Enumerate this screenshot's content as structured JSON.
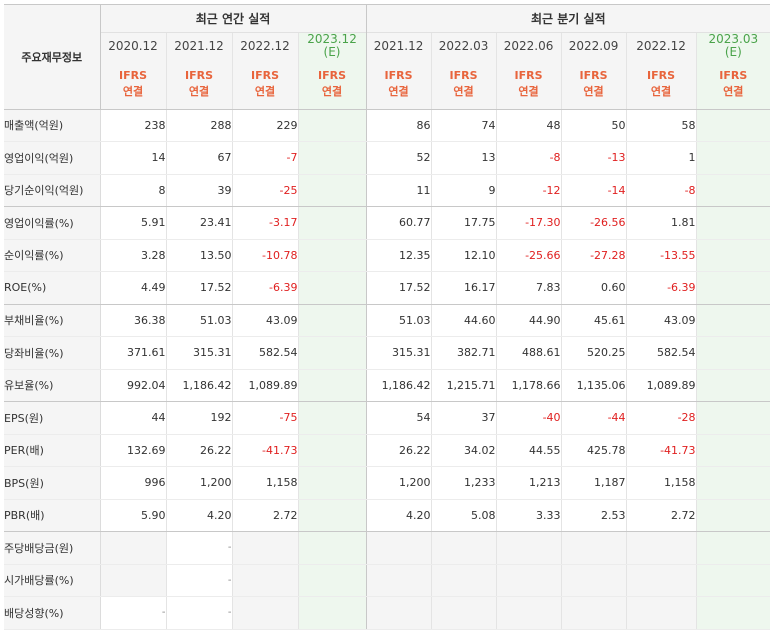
{
  "header": {
    "row_label": "주요재무정보",
    "annual_title": "최근 연간 실적",
    "quarter_title": "최근 분기 실적",
    "ifrs_line1": "IFRS",
    "ifrs_line2": "연결"
  },
  "annual_periods": [
    "2020.12",
    "2021.12",
    "2022.12",
    "2023.12"
  ],
  "annual_est_suffix": "(E)",
  "quarter_periods": [
    "2021.12",
    "2022.03",
    "2022.06",
    "2022.09",
    "2022.12",
    "2023.03"
  ],
  "quarter_est_suffix": "(E)",
  "rows": [
    {
      "label": "매출액(억원)",
      "annual": [
        "238",
        "288",
        "229",
        ""
      ],
      "quarter": [
        "86",
        "74",
        "48",
        "50",
        "58",
        ""
      ]
    },
    {
      "label": "영업이익(억원)",
      "annual": [
        "14",
        "67",
        "-7",
        ""
      ],
      "quarter": [
        "52",
        "13",
        "-8",
        "-13",
        "1",
        ""
      ]
    },
    {
      "label": "당기순이익(억원)",
      "annual": [
        "8",
        "39",
        "-25",
        ""
      ],
      "quarter": [
        "11",
        "9",
        "-12",
        "-14",
        "-8",
        ""
      ]
    },
    {
      "label": "영업이익률(%)",
      "annual": [
        "5.91",
        "23.41",
        "-3.17",
        ""
      ],
      "quarter": [
        "60.77",
        "17.75",
        "-17.30",
        "-26.56",
        "1.81",
        ""
      ]
    },
    {
      "label": "순이익률(%)",
      "annual": [
        "3.28",
        "13.50",
        "-10.78",
        ""
      ],
      "quarter": [
        "12.35",
        "12.10",
        "-25.66",
        "-27.28",
        "-13.55",
        ""
      ]
    },
    {
      "label": "ROE(%)",
      "annual": [
        "4.49",
        "17.52",
        "-6.39",
        ""
      ],
      "quarter": [
        "17.52",
        "16.17",
        "7.83",
        "0.60",
        "-6.39",
        ""
      ]
    },
    {
      "label": "부채비율(%)",
      "annual": [
        "36.38",
        "51.03",
        "43.09",
        ""
      ],
      "quarter": [
        "51.03",
        "44.60",
        "44.90",
        "45.61",
        "43.09",
        ""
      ]
    },
    {
      "label": "당좌비율(%)",
      "annual": [
        "371.61",
        "315.31",
        "582.54",
        ""
      ],
      "quarter": [
        "315.31",
        "382.71",
        "488.61",
        "520.25",
        "582.54",
        ""
      ]
    },
    {
      "label": "유보율(%)",
      "annual": [
        "992.04",
        "1,186.42",
        "1,089.89",
        ""
      ],
      "quarter": [
        "1,186.42",
        "1,215.71",
        "1,178.66",
        "1,135.06",
        "1,089.89",
        ""
      ]
    },
    {
      "label": "EPS(원)",
      "annual": [
        "44",
        "192",
        "-75",
        ""
      ],
      "quarter": [
        "54",
        "37",
        "-40",
        "-44",
        "-28",
        ""
      ]
    },
    {
      "label": "PER(배)",
      "annual": [
        "132.69",
        "26.22",
        "-41.73",
        ""
      ],
      "quarter": [
        "26.22",
        "34.02",
        "44.55",
        "425.78",
        "-41.73",
        ""
      ]
    },
    {
      "label": "BPS(원)",
      "annual": [
        "996",
        "1,200",
        "1,158",
        ""
      ],
      "quarter": [
        "1,200",
        "1,233",
        "1,213",
        "1,187",
        "1,158",
        ""
      ]
    },
    {
      "label": "PBR(배)",
      "annual": [
        "5.90",
        "4.20",
        "2.72",
        ""
      ],
      "quarter": [
        "4.20",
        "5.08",
        "3.33",
        "2.53",
        "2.72",
        ""
      ]
    },
    {
      "label": "주당배당금(원)",
      "annual": [
        "",
        "-",
        "",
        ""
      ],
      "quarter": [
        "",
        "",
        "",
        "",
        "",
        ""
      ]
    },
    {
      "label": "시가배당률(%)",
      "annual": [
        "",
        "-",
        "",
        ""
      ],
      "quarter": [
        "",
        "",
        "",
        "",
        "",
        ""
      ]
    },
    {
      "label": "배당성향(%)",
      "annual": [
        "-",
        "-",
        "",
        ""
      ],
      "quarter": [
        "",
        "",
        "",
        "",
        "",
        ""
      ]
    }
  ],
  "colors": {
    "ifrs_text": "#e8643c",
    "negative": "#e02020",
    "estimate_bg": "#eef7ee",
    "estimate_text": "#4aa34a",
    "header_bg": "#f5f5f5"
  }
}
